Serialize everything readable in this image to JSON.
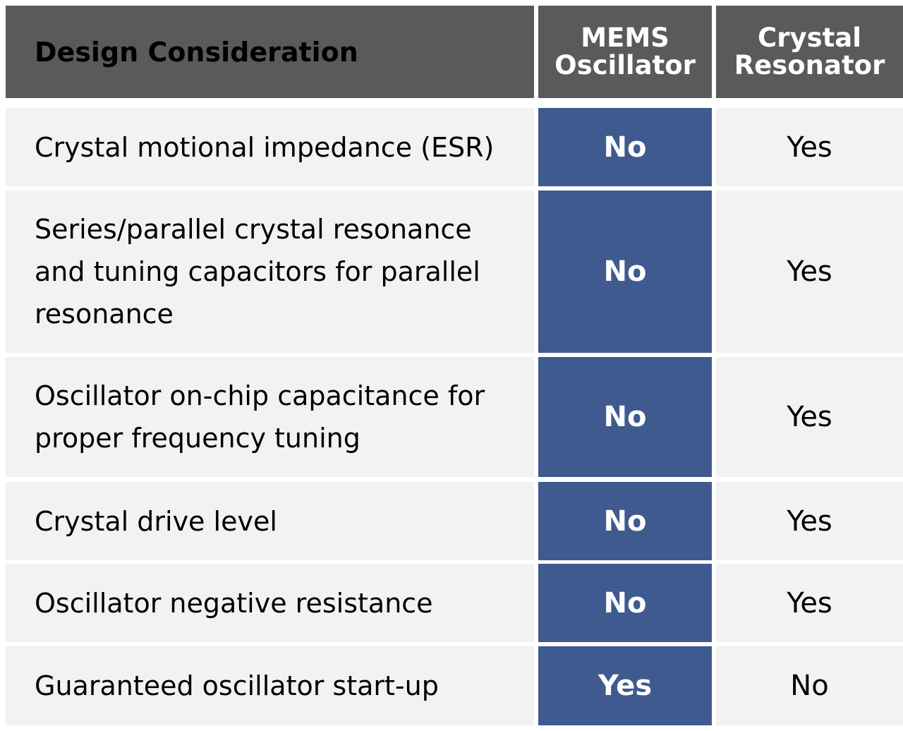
{
  "table": {
    "headers": {
      "design": "Design Consideration",
      "mems_line1": "MEMS",
      "mems_line2": "Oscillator",
      "crystal_line1": "Crystal",
      "crystal_line2": "Resonator"
    },
    "rows": [
      {
        "consideration": "Crystal motional impedance (ESR)",
        "mems": "No",
        "crystal": "Yes"
      },
      {
        "consideration": "Series/parallel crystal resonance and tuning capacitors for parallel resonance",
        "mems": "No",
        "crystal": "Yes"
      },
      {
        "consideration": "Oscillator on-chip capacitance for proper frequency tuning",
        "mems": "No",
        "crystal": "Yes"
      },
      {
        "consideration": "Crystal drive level",
        "mems": "No",
        "crystal": "Yes"
      },
      {
        "consideration": "Oscillator negative resistance",
        "mems": "No",
        "crystal": "Yes"
      },
      {
        "consideration": "Guaranteed oscillator start-up",
        "mems": "Yes",
        "crystal": "No"
      }
    ],
    "colors": {
      "header_bg": "#5a5a5a",
      "mems_bg": "#3e5a8f",
      "row_bg": "#f2f2f2"
    }
  }
}
